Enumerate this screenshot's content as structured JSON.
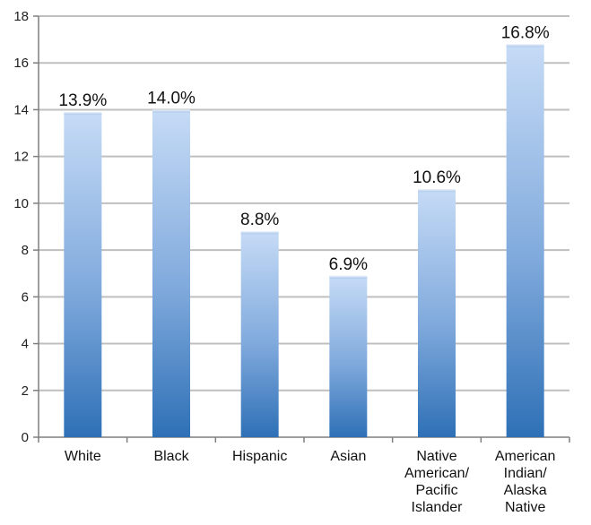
{
  "chart_data": {
    "type": "bar",
    "title": "",
    "xlabel": "",
    "ylabel": "",
    "ylim": [
      0,
      18
    ],
    "yticks": [
      0,
      2,
      4,
      6,
      8,
      10,
      12,
      14,
      16,
      18
    ],
    "grid": true,
    "legend": "none",
    "categories": [
      [
        "White"
      ],
      [
        "Black"
      ],
      [
        "Hispanic"
      ],
      [
        "Asian"
      ],
      [
        "Native",
        "American/",
        "Pacific",
        "Islander"
      ],
      [
        "American",
        "Indian/",
        "Alaska",
        "Native"
      ]
    ],
    "values": [
      13.9,
      14.0,
      8.8,
      6.9,
      10.6,
      16.8
    ],
    "data_labels": [
      "13.9%",
      "14.0%",
      "8.8%",
      "6.9%",
      "10.6%",
      "16.8%"
    ],
    "colors": {
      "bar_top": "#c6dbf6",
      "bar_bottom": "#2e70b6",
      "grid": "#bfbfbf",
      "axis": "#7f7f7f"
    }
  }
}
